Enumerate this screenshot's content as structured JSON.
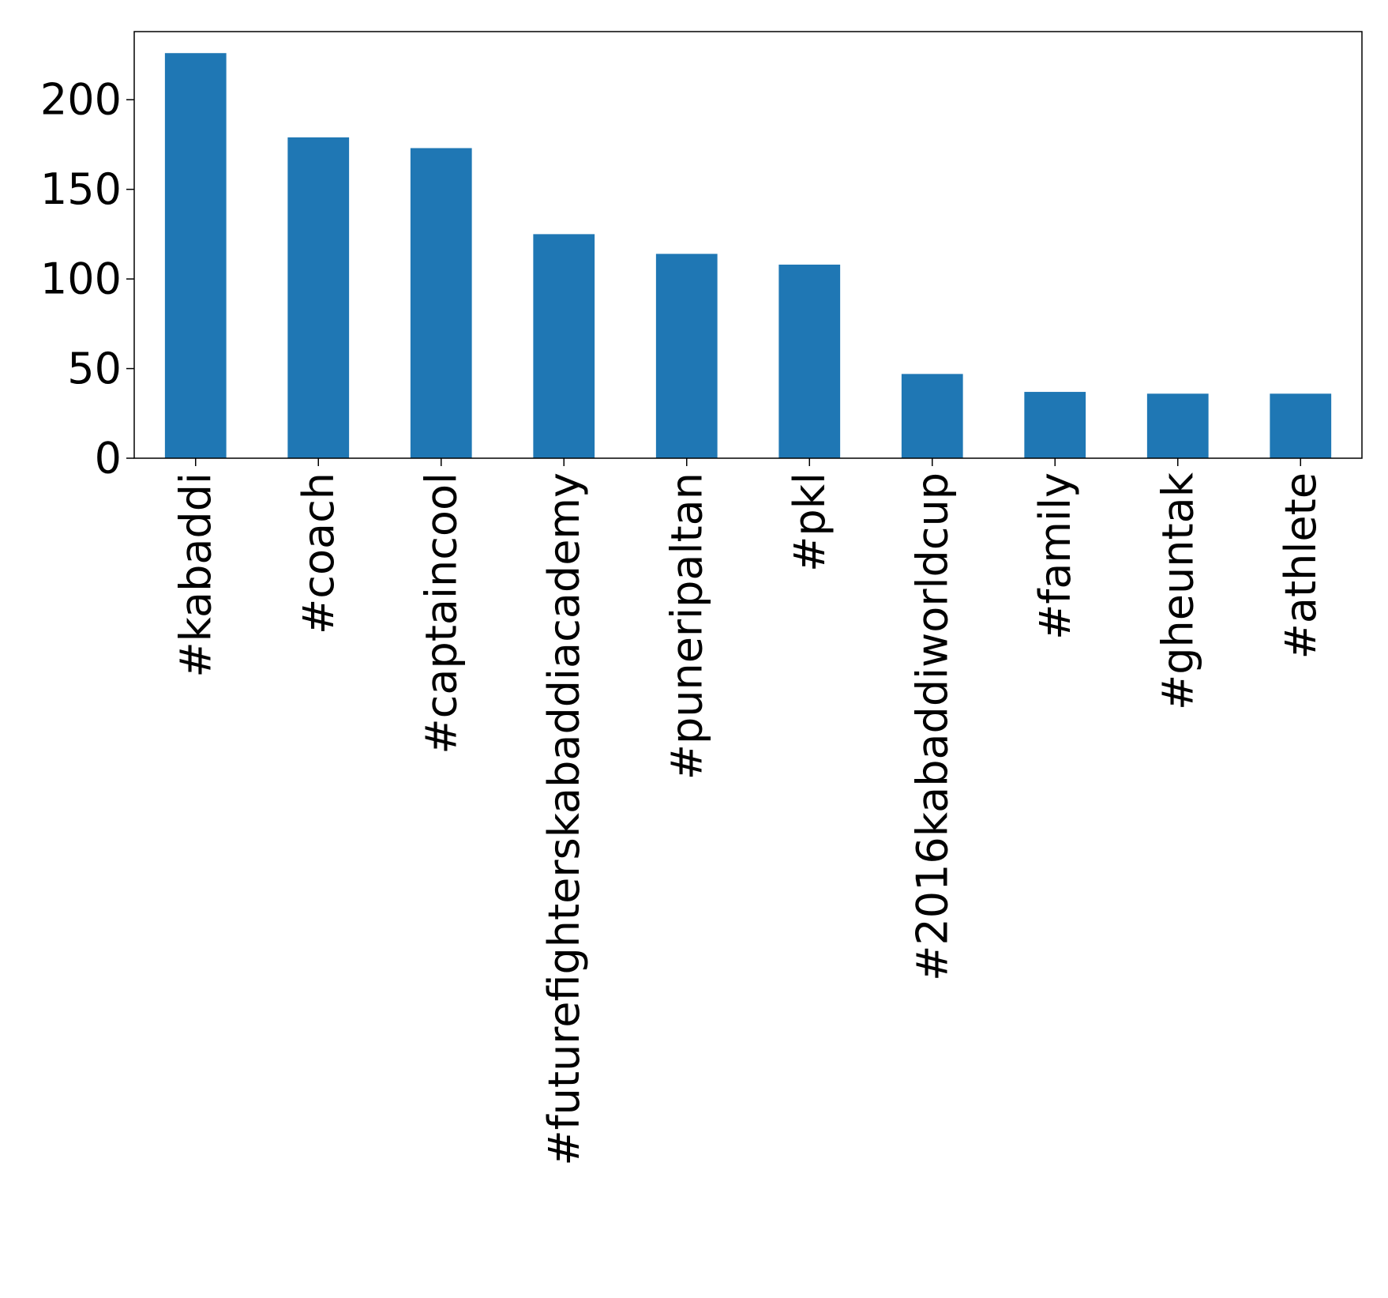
{
  "chart_data": {
    "type": "bar",
    "categories": [
      "#kabaddi",
      "#coach",
      "#captaincool",
      "#futurefighterskabaddiacademy",
      "#puneripaltan",
      "#pkl",
      "#2016kabaddiworldcup",
      "#family",
      "#gheuntak",
      "#athlete"
    ],
    "values": [
      226,
      179,
      173,
      125,
      114,
      108,
      47,
      37,
      36,
      36
    ],
    "title": "",
    "xlabel": "",
    "ylabel": "",
    "ylim": [
      0,
      238
    ],
    "yticks": [
      0,
      50,
      100,
      150,
      200
    ],
    "ytick_labels": [
      "0",
      "50",
      "100",
      "150",
      "200"
    ],
    "bar_color": "#1f77b4",
    "grid": false,
    "legend": "none"
  }
}
